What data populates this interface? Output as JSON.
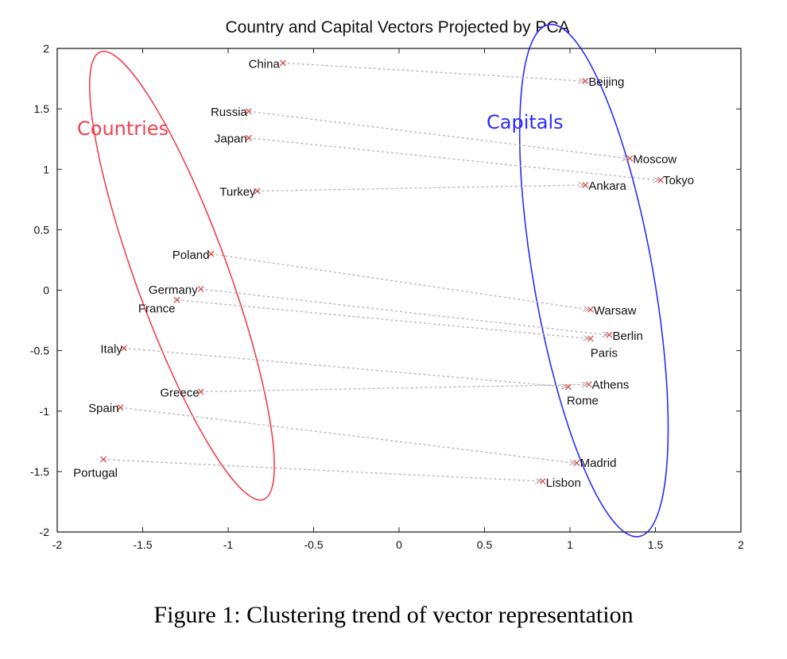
{
  "chart_data": {
    "type": "scatter",
    "title": "Country and Capital Vectors Projected by PCA",
    "xlim": [
      -2,
      2
    ],
    "ylim": [
      -2,
      2
    ],
    "x_ticks": [
      -2,
      -1.5,
      -1,
      -0.5,
      0,
      0.5,
      1,
      1.5,
      2
    ],
    "y_ticks": [
      -2,
      -1.5,
      -1,
      -0.5,
      0,
      0.5,
      1,
      1.5,
      2
    ],
    "x_tick_labels": [
      "-2",
      "-1.5",
      "-1",
      "-0.5",
      "0",
      "0.5",
      "1",
      "1.5",
      "2"
    ],
    "y_tick_labels": [
      "-2",
      "-1.5",
      "-1",
      "-0.5",
      "0",
      "0.5",
      "1",
      "1.5",
      "2"
    ],
    "grid": false,
    "marker_color": "#e0403a",
    "arrow_color": "#b4b4b4",
    "groups": [
      {
        "label": "Countries",
        "color": "#f0404f"
      },
      {
        "label": "Capitals",
        "color": "#2b2bff"
      }
    ],
    "pairs": [
      {
        "country": "China",
        "cx": -0.68,
        "cy": 1.88,
        "capital": "Beijing",
        "kx": 1.09,
        "ky": 1.73
      },
      {
        "country": "Russia",
        "cx": -0.88,
        "cy": 1.48,
        "capital": "Moscow",
        "kx": 1.35,
        "ky": 1.09
      },
      {
        "country": "Japan",
        "cx": -0.88,
        "cy": 1.26,
        "capital": "Tokyo",
        "kx": 1.53,
        "ky": 0.91
      },
      {
        "country": "Turkey",
        "cx": -0.83,
        "cy": 0.82,
        "capital": "Ankara",
        "kx": 1.09,
        "ky": 0.87
      },
      {
        "country": "Poland",
        "cx": -1.1,
        "cy": 0.3,
        "capital": "Warsaw",
        "kx": 1.12,
        "ky": -0.16
      },
      {
        "country": "Germany",
        "cx": -1.16,
        "cy": 0.01,
        "capital": "Berlin",
        "kx": 1.23,
        "ky": -0.37
      },
      {
        "country": "France",
        "cx": -1.3,
        "cy": -0.08,
        "capital": "Paris",
        "kx": 1.12,
        "ky": -0.4
      },
      {
        "country": "Italy",
        "cx": -1.61,
        "cy": -0.48,
        "capital": "Rome",
        "kx": 0.99,
        "ky": -0.8
      },
      {
        "country": "Greece",
        "cx": -1.16,
        "cy": -0.84,
        "capital": "Athens",
        "kx": 1.11,
        "ky": -0.78
      },
      {
        "country": "Spain",
        "cx": -1.63,
        "cy": -0.97,
        "capital": "Madrid",
        "kx": 1.04,
        "ky": -1.43
      },
      {
        "country": "Portugal",
        "cx": -1.73,
        "cy": -1.4,
        "capital": "Lisbon",
        "kx": 0.84,
        "ky": -1.58
      }
    ]
  },
  "caption": "Figure 1: Clustering trend of vector representation"
}
